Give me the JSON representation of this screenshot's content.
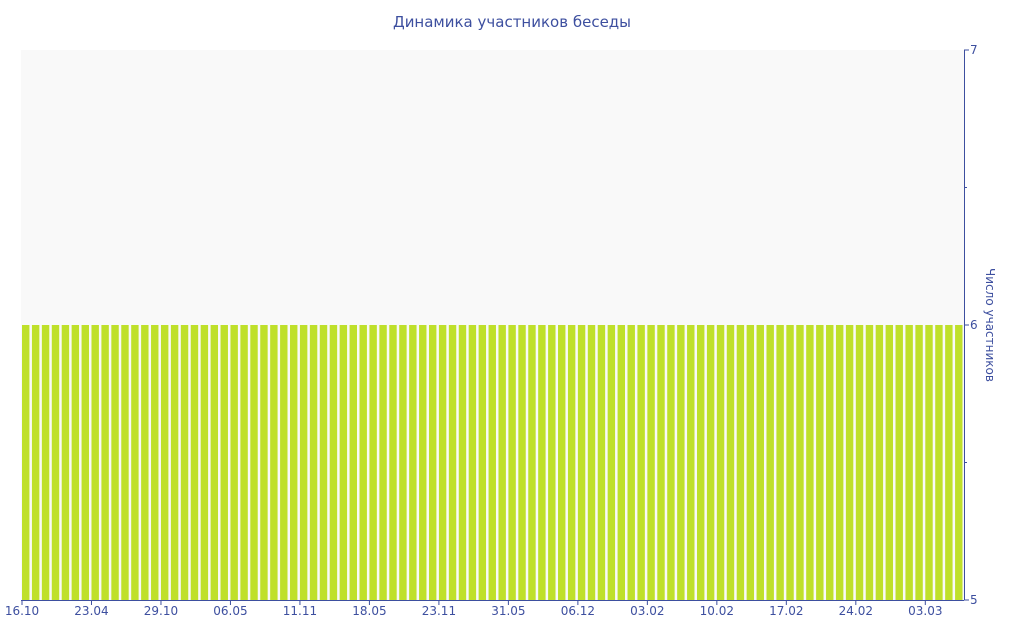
{
  "chart_data": {
    "type": "bar",
    "title": "Динамика участников беседы",
    "ylabel": "Число участников",
    "xlabel": "",
    "ylim": [
      5,
      7
    ],
    "yticks": [
      5,
      6,
      7
    ],
    "y_axis_side": "right",
    "grid": false,
    "bar_color": "#bfe02a",
    "plot_background": "#f9f9f9",
    "axis_color": "#3d4f9f",
    "x_tick_labels": [
      "16.10",
      "23.04",
      "29.10",
      "06.05",
      "11.11",
      "18.05",
      "23.11",
      "31.05",
      "06.12",
      "03.02",
      "10.02",
      "17.02",
      "24.02",
      "03.03"
    ],
    "x_tick_every": 7,
    "values": [
      6,
      6,
      6,
      6,
      6,
      6,
      6,
      6,
      6,
      6,
      6,
      6,
      6,
      6,
      6,
      6,
      6,
      6,
      6,
      6,
      6,
      6,
      6,
      6,
      6,
      6,
      6,
      6,
      6,
      6,
      6,
      6,
      6,
      6,
      6,
      6,
      6,
      6,
      6,
      6,
      6,
      6,
      6,
      6,
      6,
      6,
      6,
      6,
      6,
      6,
      6,
      6,
      6,
      6,
      6,
      6,
      6,
      6,
      6,
      6,
      6,
      6,
      6,
      6,
      6,
      6,
      6,
      6,
      6,
      6,
      6,
      6,
      6,
      6,
      6,
      6,
      6,
      6,
      6,
      6,
      6,
      6,
      6,
      6,
      6,
      6,
      6,
      6,
      6,
      6,
      6,
      6,
      6,
      6,
      6
    ]
  }
}
